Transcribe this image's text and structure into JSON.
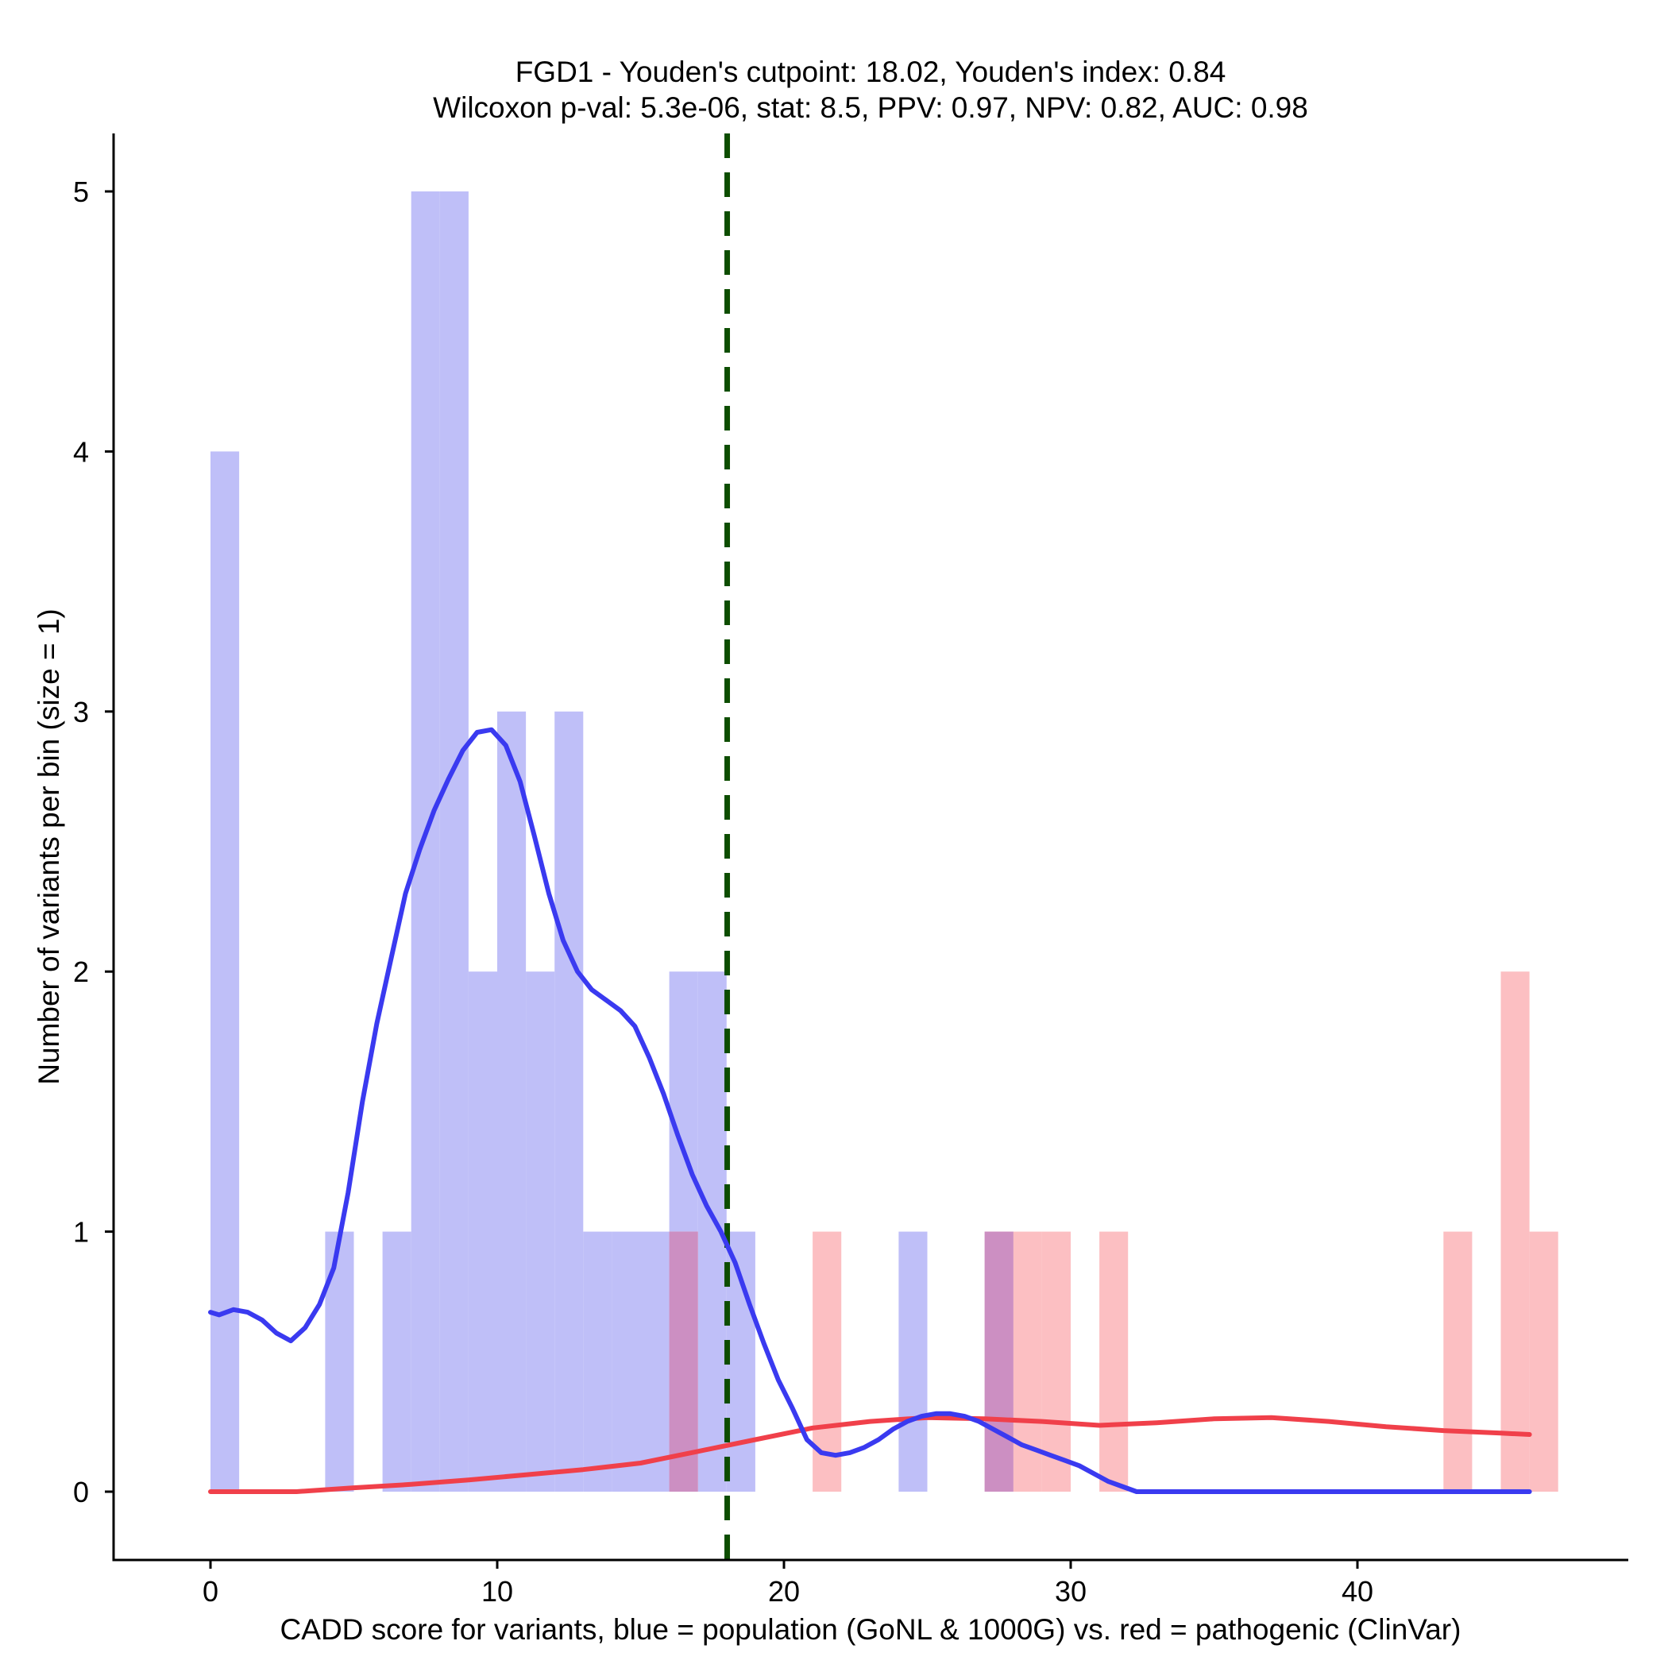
{
  "chart_data": {
    "type": "histogram",
    "title_line1": "FGD1 - Youden's cutpoint: 18.02, Youden's index: 0.84",
    "title_line2": "Wilcoxon p-val: 5.3e-06, stat: 8.5, PPV: 0.97, NPV: 0.82, AUC: 0.98",
    "xlabel": "CADD score for variants, blue = population (GoNL & 1000G) vs. red = pathogenic (ClinVar)",
    "ylabel": "Number of variants per bin (size = 1)",
    "xlim": [
      -3.4,
      49.4
    ],
    "ylim": [
      -0.25,
      5.25
    ],
    "x_ticks": [
      0,
      10,
      20,
      30,
      40
    ],
    "y_ticks": [
      0,
      1,
      2,
      3,
      4,
      5
    ],
    "x_tick_labels": [
      "0",
      "10",
      "20",
      "30",
      "40"
    ],
    "y_tick_labels": [
      "0",
      "1",
      "2",
      "3",
      "4",
      "5"
    ],
    "bin_size": 1,
    "cutpoint": 18.02,
    "colors": {
      "population_bar": "#bfbff8",
      "pathogenic_bar": "#fcbfc2",
      "overlap_bar": "#cc8fc2",
      "population_line": "#3a3af0",
      "pathogenic_line": "#f0404a",
      "cutpoint_line": "#0d4d00"
    },
    "series": [
      {
        "name": "population (GoNL & 1000G)",
        "bins": [
          {
            "x": 0,
            "count": 4
          },
          {
            "x": 4,
            "count": 1
          },
          {
            "x": 6,
            "count": 1
          },
          {
            "x": 7,
            "count": 5
          },
          {
            "x": 8,
            "count": 5
          },
          {
            "x": 9,
            "count": 2
          },
          {
            "x": 10,
            "count": 3
          },
          {
            "x": 11,
            "count": 2
          },
          {
            "x": 12,
            "count": 3
          },
          {
            "x": 13,
            "count": 1
          },
          {
            "x": 14,
            "count": 1
          },
          {
            "x": 15,
            "count": 1
          },
          {
            "x": 16,
            "count": 2
          },
          {
            "x": 17,
            "count": 2
          },
          {
            "x": 18,
            "count": 1
          },
          {
            "x": 24,
            "count": 1
          },
          {
            "x": 27,
            "count": 1
          }
        ],
        "density": [
          [
            0,
            0.69
          ],
          [
            0.3,
            0.68
          ],
          [
            0.8,
            0.7
          ],
          [
            1.3,
            0.69
          ],
          [
            1.8,
            0.66
          ],
          [
            2.3,
            0.61
          ],
          [
            2.8,
            0.58
          ],
          [
            3.3,
            0.63
          ],
          [
            3.8,
            0.72
          ],
          [
            4.3,
            0.86
          ],
          [
            4.8,
            1.15
          ],
          [
            5.3,
            1.5
          ],
          [
            5.8,
            1.8
          ],
          [
            6.3,
            2.05
          ],
          [
            6.8,
            2.3
          ],
          [
            7.3,
            2.47
          ],
          [
            7.8,
            2.62
          ],
          [
            8.3,
            2.74
          ],
          [
            8.8,
            2.85
          ],
          [
            9.3,
            2.92
          ],
          [
            9.8,
            2.93
          ],
          [
            10.3,
            2.87
          ],
          [
            10.8,
            2.73
          ],
          [
            11.3,
            2.52
          ],
          [
            11.8,
            2.3
          ],
          [
            12.3,
            2.12
          ],
          [
            12.8,
            2.0
          ],
          [
            13.3,
            1.93
          ],
          [
            13.8,
            1.89
          ],
          [
            14.3,
            1.85
          ],
          [
            14.8,
            1.79
          ],
          [
            15.3,
            1.67
          ],
          [
            15.8,
            1.53
          ],
          [
            16.3,
            1.37
          ],
          [
            16.8,
            1.22
          ],
          [
            17.3,
            1.1
          ],
          [
            17.8,
            1.0
          ],
          [
            18.3,
            0.88
          ],
          [
            18.8,
            0.72
          ],
          [
            19.3,
            0.57
          ],
          [
            19.8,
            0.43
          ],
          [
            20.3,
            0.32
          ],
          [
            20.8,
            0.2
          ],
          [
            21.3,
            0.15
          ],
          [
            21.8,
            0.14
          ],
          [
            22.3,
            0.15
          ],
          [
            22.8,
            0.17
          ],
          [
            23.3,
            0.2
          ],
          [
            23.8,
            0.24
          ],
          [
            24.3,
            0.27
          ],
          [
            24.8,
            0.29
          ],
          [
            25.3,
            0.3
          ],
          [
            25.8,
            0.3
          ],
          [
            26.3,
            0.29
          ],
          [
            26.8,
            0.27
          ],
          [
            27.3,
            0.24
          ],
          [
            27.8,
            0.21
          ],
          [
            28.3,
            0.18
          ],
          [
            28.8,
            0.16
          ],
          [
            29.3,
            0.14
          ],
          [
            29.8,
            0.12
          ],
          [
            30.3,
            0.1
          ],
          [
            30.8,
            0.07
          ],
          [
            31.3,
            0.04
          ],
          [
            31.8,
            0.02
          ],
          [
            32.3,
            0.0
          ],
          [
            33,
            0.0
          ],
          [
            40,
            0.0
          ],
          [
            46,
            0.0
          ]
        ]
      },
      {
        "name": "pathogenic (ClinVar)",
        "bins": [
          {
            "x": 16,
            "count": 1
          },
          {
            "x": 21,
            "count": 1
          },
          {
            "x": 27,
            "count": 1
          },
          {
            "x": 28,
            "count": 1
          },
          {
            "x": 29,
            "count": 1
          },
          {
            "x": 31,
            "count": 1
          },
          {
            "x": 43,
            "count": 1
          },
          {
            "x": 45,
            "count": 2
          },
          {
            "x": 46,
            "count": 1
          }
        ],
        "density": [
          [
            0,
            0.0
          ],
          [
            3,
            0.0
          ],
          [
            5,
            0.015
          ],
          [
            7,
            0.028
          ],
          [
            9,
            0.045
          ],
          [
            11,
            0.065
          ],
          [
            13,
            0.085
          ],
          [
            15,
            0.11
          ],
          [
            17,
            0.155
          ],
          [
            19,
            0.2
          ],
          [
            21,
            0.245
          ],
          [
            23,
            0.27
          ],
          [
            25,
            0.285
          ],
          [
            27,
            0.28
          ],
          [
            29,
            0.27
          ],
          [
            31,
            0.255
          ],
          [
            33,
            0.265
          ],
          [
            35,
            0.28
          ],
          [
            37,
            0.285
          ],
          [
            39,
            0.27
          ],
          [
            41,
            0.25
          ],
          [
            43,
            0.235
          ],
          [
            45,
            0.225
          ],
          [
            46,
            0.22
          ]
        ]
      }
    ]
  }
}
